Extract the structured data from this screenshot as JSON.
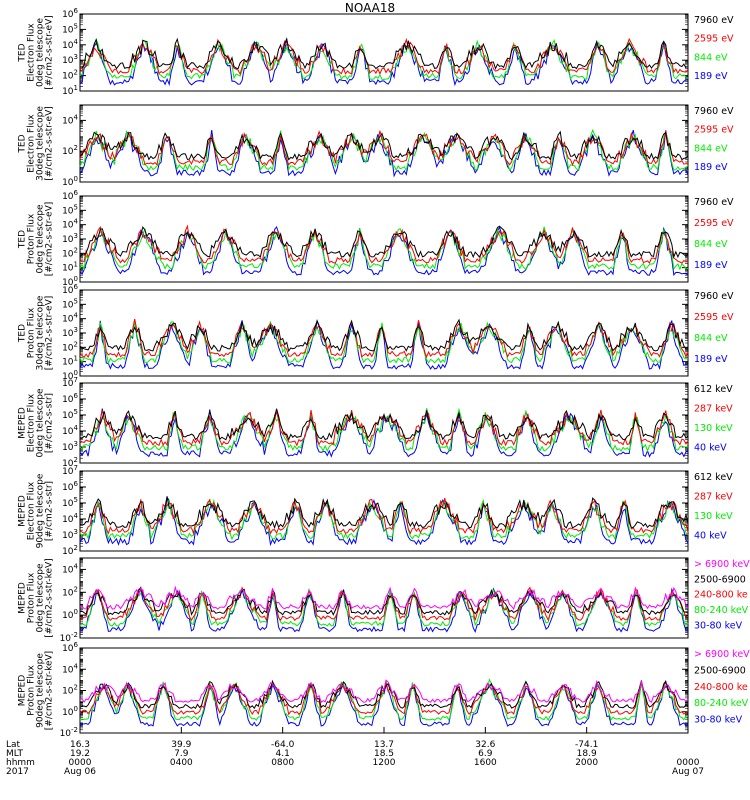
{
  "title": "NOAA18",
  "colors": {
    "blue": "#0000ff",
    "green": "#00ee00",
    "red": "#ff0000",
    "black": "#000000",
    "magenta": "#ff00ff"
  },
  "chart_data": [
    {
      "type": "line",
      "instrument": "TED",
      "ylabel": [
        "TED",
        "Electron Flux",
        "0deg telescope",
        "[#/cm2-s-str-eV]"
      ],
      "ytick_exps": [
        1,
        2,
        3,
        4,
        5,
        6
      ],
      "ylim_exp": [
        1,
        6
      ],
      "fill": true,
      "series": [
        {
          "name": "7960 eV",
          "color": "#000000"
        },
        {
          "name": "2595 eV",
          "color": "#ff0000"
        },
        {
          "name": "844 eV",
          "color": "#00ee00"
        },
        {
          "name": "189 eV",
          "color": "#0000ff"
        }
      ]
    },
    {
      "type": "line",
      "instrument": "TED",
      "ylabel": [
        "TED",
        "Electron Flux",
        "30deg telescope",
        "[#/cm2-s-str-eV]"
      ],
      "ytick_exps": [
        0,
        2,
        4
      ],
      "ylim_exp": [
        0,
        5
      ],
      "fill": true,
      "series": [
        {
          "name": "7960 eV",
          "color": "#000000"
        },
        {
          "name": "2595 eV",
          "color": "#ff0000"
        },
        {
          "name": "844 eV",
          "color": "#00ee00"
        },
        {
          "name": "189 eV",
          "color": "#0000ff"
        }
      ]
    },
    {
      "type": "line",
      "instrument": "TED",
      "ylabel": [
        "TED",
        "Proton Flux",
        "0deg telescope",
        "[#/cm2-s-str-eV]"
      ],
      "ytick_exps": [
        0,
        1,
        2,
        3,
        4,
        5,
        6
      ],
      "ylim_exp": [
        0,
        6
      ],
      "fill": false,
      "series": [
        {
          "name": "7960 eV",
          "color": "#000000"
        },
        {
          "name": "2595 eV",
          "color": "#ff0000"
        },
        {
          "name": "844 eV",
          "color": "#00ee00"
        },
        {
          "name": "189 eV",
          "color": "#0000ff"
        }
      ]
    },
    {
      "type": "line",
      "instrument": "TED",
      "ylabel": [
        "TED",
        "Proton Flux",
        "30deg telescope",
        "[#/cm2-s-str-eV]"
      ],
      "ytick_exps": [
        0,
        1,
        2,
        3,
        4,
        5,
        6
      ],
      "ylim_exp": [
        0,
        6
      ],
      "fill": false,
      "series": [
        {
          "name": "7960 eV",
          "color": "#000000"
        },
        {
          "name": "2595 eV",
          "color": "#ff0000"
        },
        {
          "name": "844 eV",
          "color": "#00ee00"
        },
        {
          "name": "189 eV",
          "color": "#0000ff"
        }
      ]
    },
    {
      "type": "line",
      "instrument": "MEPED",
      "ylabel": [
        "MEPED",
        "Electron Flux",
        "0deg telescope",
        "[#/cm2-s-str]"
      ],
      "ytick_exps": [
        2,
        3,
        4,
        5,
        6,
        7
      ],
      "ylim_exp": [
        2,
        7
      ],
      "fill": false,
      "series": [
        {
          "name": "612 keV",
          "color": "#000000"
        },
        {
          "name": "287 keV",
          "color": "#ff0000"
        },
        {
          "name": "130 keV",
          "color": "#00ee00"
        },
        {
          "name": "40 keV",
          "color": "#0000ff"
        }
      ]
    },
    {
      "type": "line",
      "instrument": "MEPED",
      "ylabel": [
        "MEPED",
        "Electron Flux",
        "90deg telescope",
        "[#/cm2-s-str]"
      ],
      "ytick_exps": [
        2,
        3,
        4,
        5,
        6,
        7
      ],
      "ylim_exp": [
        2,
        7
      ],
      "fill": false,
      "series": [
        {
          "name": "612 keV",
          "color": "#000000"
        },
        {
          "name": "287 keV",
          "color": "#ff0000"
        },
        {
          "name": "130 keV",
          "color": "#00ee00"
        },
        {
          "name": "40 keV",
          "color": "#0000ff"
        }
      ]
    },
    {
      "type": "line",
      "instrument": "MEPED",
      "ylabel": [
        "MEPED",
        "Proton Flux",
        "0deg telescope",
        "[#/cm2-s-str-keV]"
      ],
      "ytick_exps": [
        -2,
        0,
        2,
        4
      ],
      "ylim_exp": [
        -2,
        5
      ],
      "fill": false,
      "series": [
        {
          "name": "> 6900 keV",
          "color": "#ff00ff"
        },
        {
          "name": "2500-6900",
          "color": "#000000"
        },
        {
          "name": "240-800 ke",
          "color": "#ff0000"
        },
        {
          "name": "80-240 keV",
          "color": "#00ee00"
        },
        {
          "name": "30-80 keV",
          "color": "#0000ff"
        }
      ]
    },
    {
      "type": "line",
      "instrument": "MEPED",
      "ylabel": [
        "MEPED",
        "Proton Flux",
        "90deg telescope",
        "[#/cm2-s-str-keV]"
      ],
      "ytick_exps": [
        -2,
        0,
        2,
        4,
        6
      ],
      "ylim_exp": [
        -2,
        6
      ],
      "fill": false,
      "series": [
        {
          "name": "> 6900 keV",
          "color": "#ff00ff"
        },
        {
          "name": "2500-6900",
          "color": "#000000"
        },
        {
          "name": "240-800 ke",
          "color": "#ff0000"
        },
        {
          "name": "80-240 keV",
          "color": "#00ee00"
        },
        {
          "name": "30-80 keV",
          "color": "#0000ff"
        }
      ]
    }
  ],
  "xaxis": {
    "row_labels": [
      "Lat",
      "MLT",
      "hhmm",
      "2017"
    ],
    "ticks": [
      {
        "lat": "16.3",
        "mlt": "19.2",
        "hhmm": "0000",
        "extra": "Aug 06"
      },
      {
        "lat": "39.9",
        "mlt": "7.9",
        "hhmm": "0400",
        "extra": ""
      },
      {
        "lat": "-64.0",
        "mlt": "4.1",
        "hhmm": "0800",
        "extra": ""
      },
      {
        "lat": "13.7",
        "mlt": "18.5",
        "hhmm": "1200",
        "extra": ""
      },
      {
        "lat": "32.6",
        "mlt": "6.9",
        "hhmm": "1600",
        "extra": ""
      },
      {
        "lat": "-74.1",
        "mlt": "18.9",
        "hhmm": "2000",
        "extra": ""
      },
      {
        "lat": "",
        "mlt": "",
        "hhmm": "0000",
        "extra": "Aug 07"
      }
    ]
  }
}
